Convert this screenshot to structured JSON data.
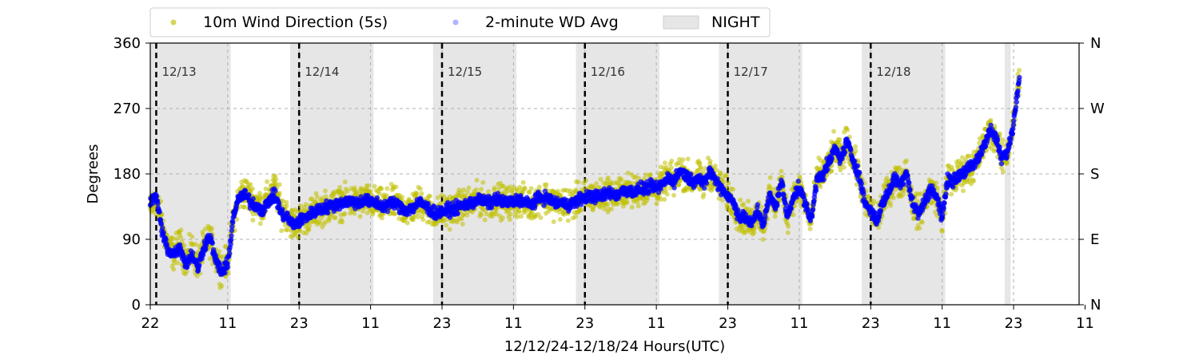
{
  "chart_data": {
    "type": "scatter",
    "xlabel": "12/12/24-12/18/24  Hours(UTC)",
    "ylabel": "Degrees",
    "ylim": [
      0,
      360
    ],
    "xlim": [
      0,
      156
    ],
    "x_ticks": [
      {
        "x": 0,
        "label": "22"
      },
      {
        "x": 13,
        "label": "11"
      },
      {
        "x": 25,
        "label": "23"
      },
      {
        "x": 37,
        "label": "11"
      },
      {
        "x": 49,
        "label": "23"
      },
      {
        "x": 61,
        "label": "11"
      },
      {
        "x": 73,
        "label": "23"
      },
      {
        "x": 85,
        "label": "11"
      },
      {
        "x": 97,
        "label": "23"
      },
      {
        "x": 109,
        "label": "11"
      },
      {
        "x": 121,
        "label": "23"
      },
      {
        "x": 133,
        "label": "11"
      },
      {
        "x": 145,
        "label": "23"
      },
      {
        "x": 157,
        "label": "11"
      }
    ],
    "y_ticks": [
      "0",
      "90",
      "180",
      "270",
      "360"
    ],
    "y_ticks_right": [
      "N",
      "E",
      "S",
      "W",
      "N"
    ],
    "grid": "dashed gray, both axes",
    "legend": {
      "placement": "top-left, above plot",
      "entries": [
        "10m Wind Direction (5s)",
        "2-minute WD Avg",
        "NIGHT"
      ]
    },
    "day_markers": [
      {
        "x": 1,
        "label": "12/13"
      },
      {
        "x": 25,
        "label": "12/14"
      },
      {
        "x": 49,
        "label": "12/15"
      },
      {
        "x": 73,
        "label": "12/16"
      },
      {
        "x": 97,
        "label": "12/17"
      },
      {
        "x": 121,
        "label": "12/18"
      }
    ],
    "night_bands": [
      [
        0,
        13.5
      ],
      [
        23.5,
        37.5
      ],
      [
        47.5,
        61.5
      ],
      [
        71.5,
        85.5
      ],
      [
        95.5,
        109.5
      ],
      [
        119.5,
        133.5
      ],
      [
        143.5,
        144.5
      ]
    ],
    "series": [
      {
        "name": "10m Wind Direction (5s)",
        "color": "#bfbf00",
        "spread": 32,
        "points": [
          [
            0,
            130
          ],
          [
            1,
            145
          ],
          [
            2,
            110
          ],
          [
            3,
            80
          ],
          [
            4,
            70
          ],
          [
            5,
            85
          ],
          [
            6,
            60
          ],
          [
            7,
            75
          ],
          [
            8,
            55
          ],
          [
            9,
            80
          ],
          [
            10,
            90
          ],
          [
            11,
            65
          ],
          [
            12,
            50
          ],
          [
            13,
            60
          ],
          [
            14,
            120
          ],
          [
            15,
            150
          ],
          [
            16,
            155
          ],
          [
            17,
            145
          ],
          [
            18,
            140
          ],
          [
            19,
            135
          ],
          [
            20,
            150
          ],
          [
            21,
            160
          ],
          [
            22,
            130
          ],
          [
            23,
            125
          ],
          [
            24,
            110
          ],
          [
            25,
            115
          ],
          [
            26,
            120
          ],
          [
            27,
            125
          ],
          [
            28,
            130
          ],
          [
            29,
            133
          ],
          [
            30,
            135
          ],
          [
            31,
            138
          ],
          [
            32,
            140
          ],
          [
            33,
            142
          ],
          [
            34,
            142
          ],
          [
            35,
            140
          ],
          [
            36,
            145
          ],
          [
            37,
            140
          ],
          [
            38,
            140
          ],
          [
            39,
            135
          ],
          [
            40,
            138
          ],
          [
            41,
            140
          ],
          [
            42,
            135
          ],
          [
            43,
            130
          ],
          [
            44,
            133
          ],
          [
            45,
            140
          ],
          [
            46,
            138
          ],
          [
            47,
            130
          ],
          [
            48,
            125
          ],
          [
            49,
            128
          ],
          [
            50,
            130
          ],
          [
            51,
            132
          ],
          [
            52,
            135
          ],
          [
            53,
            138
          ],
          [
            54,
            140
          ],
          [
            55,
            145
          ],
          [
            56,
            142
          ],
          [
            57,
            140
          ],
          [
            58,
            145
          ],
          [
            59,
            143
          ],
          [
            60,
            140
          ],
          [
            61,
            142
          ],
          [
            62,
            145
          ],
          [
            63,
            140
          ],
          [
            64,
            138
          ],
          [
            65,
            145
          ],
          [
            66,
            148
          ],
          [
            67,
            145
          ],
          [
            68,
            140
          ],
          [
            69,
            140
          ],
          [
            70,
            138
          ],
          [
            71,
            140
          ],
          [
            72,
            145
          ],
          [
            73,
            148
          ],
          [
            74,
            150
          ],
          [
            75,
            148
          ],
          [
            76,
            150
          ],
          [
            77,
            155
          ],
          [
            78,
            150
          ],
          [
            79,
            155
          ],
          [
            80,
            158
          ],
          [
            81,
            155
          ],
          [
            82,
            158
          ],
          [
            83,
            160
          ],
          [
            84,
            162
          ],
          [
            85,
            160
          ],
          [
            86,
            165
          ],
          [
            87,
            175
          ],
          [
            88,
            170
          ],
          [
            89,
            185
          ],
          [
            90,
            178
          ],
          [
            91,
            170
          ],
          [
            92,
            175
          ],
          [
            93,
            165
          ],
          [
            94,
            185
          ],
          [
            95,
            170
          ],
          [
            96,
            160
          ],
          [
            97,
            150
          ],
          [
            98,
            140
          ],
          [
            99,
            120
          ],
          [
            100,
            120
          ],
          [
            101,
            110
          ],
          [
            102,
            130
          ],
          [
            103,
            110
          ],
          [
            104,
            150
          ],
          [
            105,
            135
          ],
          [
            106,
            170
          ],
          [
            107,
            120
          ],
          [
            108,
            150
          ],
          [
            109,
            160
          ],
          [
            110,
            140
          ],
          [
            111,
            115
          ],
          [
            112,
            175
          ],
          [
            113,
            180
          ],
          [
            114,
            195
          ],
          [
            115,
            215
          ],
          [
            116,
            200
          ],
          [
            117,
            225
          ],
          [
            118,
            200
          ],
          [
            119,
            180
          ],
          [
            120,
            140
          ],
          [
            121,
            130
          ],
          [
            122,
            115
          ],
          [
            123,
            140
          ],
          [
            124,
            155
          ],
          [
            125,
            175
          ],
          [
            126,
            165
          ],
          [
            127,
            185
          ],
          [
            128,
            140
          ],
          [
            129,
            125
          ],
          [
            130,
            140
          ],
          [
            131,
            160
          ],
          [
            132,
            150
          ],
          [
            133,
            120
          ],
          [
            134,
            175
          ],
          [
            135,
            170
          ],
          [
            136,
            180
          ],
          [
            137,
            185
          ],
          [
            138,
            190
          ],
          [
            139,
            200
          ],
          [
            140,
            220
          ],
          [
            141,
            240
          ],
          [
            142,
            230
          ],
          [
            143,
            200
          ],
          [
            144,
            210
          ],
          [
            145,
            250
          ],
          [
            146,
            320
          ]
        ]
      },
      {
        "name": "2-minute WD Avg",
        "color": "#0000ff",
        "spread": 12,
        "points": [
          [
            0,
            140
          ],
          [
            1,
            150
          ],
          [
            2,
            100
          ],
          [
            3,
            75
          ],
          [
            4,
            70
          ],
          [
            5,
            80
          ],
          [
            6,
            55
          ],
          [
            7,
            70
          ],
          [
            8,
            50
          ],
          [
            9,
            80
          ],
          [
            10,
            95
          ],
          [
            11,
            60
          ],
          [
            12,
            45
          ],
          [
            13,
            55
          ],
          [
            14,
            125
          ],
          [
            15,
            148
          ],
          [
            16,
            150
          ],
          [
            17,
            140
          ],
          [
            18,
            135
          ],
          [
            19,
            130
          ],
          [
            20,
            145
          ],
          [
            21,
            150
          ],
          [
            22,
            125
          ],
          [
            23,
            120
          ],
          [
            24,
            110
          ],
          [
            25,
            115
          ],
          [
            26,
            120
          ],
          [
            27,
            125
          ],
          [
            28,
            130
          ],
          [
            29,
            133
          ],
          [
            30,
            135
          ],
          [
            31,
            138
          ],
          [
            32,
            140
          ],
          [
            33,
            142
          ],
          [
            34,
            142
          ],
          [
            35,
            140
          ],
          [
            36,
            145
          ],
          [
            37,
            140
          ],
          [
            38,
            140
          ],
          [
            39,
            135
          ],
          [
            40,
            138
          ],
          [
            41,
            140
          ],
          [
            42,
            135
          ],
          [
            43,
            130
          ],
          [
            44,
            133
          ],
          [
            45,
            140
          ],
          [
            46,
            138
          ],
          [
            47,
            130
          ],
          [
            48,
            125
          ],
          [
            49,
            128
          ],
          [
            50,
            130
          ],
          [
            51,
            132
          ],
          [
            52,
            135
          ],
          [
            53,
            138
          ],
          [
            54,
            140
          ],
          [
            55,
            145
          ],
          [
            56,
            142
          ],
          [
            57,
            140
          ],
          [
            58,
            145
          ],
          [
            59,
            143
          ],
          [
            60,
            140
          ],
          [
            61,
            142
          ],
          [
            62,
            145
          ],
          [
            63,
            140
          ],
          [
            64,
            138
          ],
          [
            65,
            145
          ],
          [
            66,
            148
          ],
          [
            67,
            145
          ],
          [
            68,
            140
          ],
          [
            69,
            140
          ],
          [
            70,
            138
          ],
          [
            71,
            140
          ],
          [
            72,
            145
          ],
          [
            73,
            148
          ],
          [
            74,
            150
          ],
          [
            75,
            148
          ],
          [
            76,
            150
          ],
          [
            77,
            155
          ],
          [
            78,
            150
          ],
          [
            79,
            155
          ],
          [
            80,
            158
          ],
          [
            81,
            155
          ],
          [
            82,
            158
          ],
          [
            83,
            160
          ],
          [
            84,
            162
          ],
          [
            85,
            160
          ],
          [
            86,
            165
          ],
          [
            87,
            175
          ],
          [
            88,
            170
          ],
          [
            89,
            185
          ],
          [
            90,
            178
          ],
          [
            91,
            170
          ],
          [
            92,
            175
          ],
          [
            93,
            165
          ],
          [
            94,
            185
          ],
          [
            95,
            170
          ],
          [
            96,
            160
          ],
          [
            97,
            150
          ],
          [
            98,
            140
          ],
          [
            99,
            120
          ],
          [
            100,
            120
          ],
          [
            101,
            110
          ],
          [
            102,
            130
          ],
          [
            103,
            110
          ],
          [
            104,
            150
          ],
          [
            105,
            135
          ],
          [
            106,
            170
          ],
          [
            107,
            120
          ],
          [
            108,
            150
          ],
          [
            109,
            160
          ],
          [
            110,
            140
          ],
          [
            111,
            115
          ],
          [
            112,
            175
          ],
          [
            113,
            180
          ],
          [
            114,
            195
          ],
          [
            115,
            215
          ],
          [
            116,
            200
          ],
          [
            117,
            225
          ],
          [
            118,
            200
          ],
          [
            119,
            180
          ],
          [
            120,
            140
          ],
          [
            121,
            130
          ],
          [
            122,
            115
          ],
          [
            123,
            140
          ],
          [
            124,
            155
          ],
          [
            125,
            175
          ],
          [
            126,
            165
          ],
          [
            127,
            185
          ],
          [
            128,
            140
          ],
          [
            129,
            125
          ],
          [
            130,
            140
          ],
          [
            131,
            160
          ],
          [
            132,
            150
          ],
          [
            133,
            120
          ],
          [
            134,
            175
          ],
          [
            135,
            170
          ],
          [
            136,
            180
          ],
          [
            137,
            185
          ],
          [
            138,
            190
          ],
          [
            139,
            200
          ],
          [
            140,
            220
          ],
          [
            141,
            240
          ],
          [
            142,
            230
          ],
          [
            143,
            200
          ],
          [
            144,
            210
          ],
          [
            145,
            250
          ],
          [
            146,
            320
          ]
        ]
      }
    ]
  }
}
